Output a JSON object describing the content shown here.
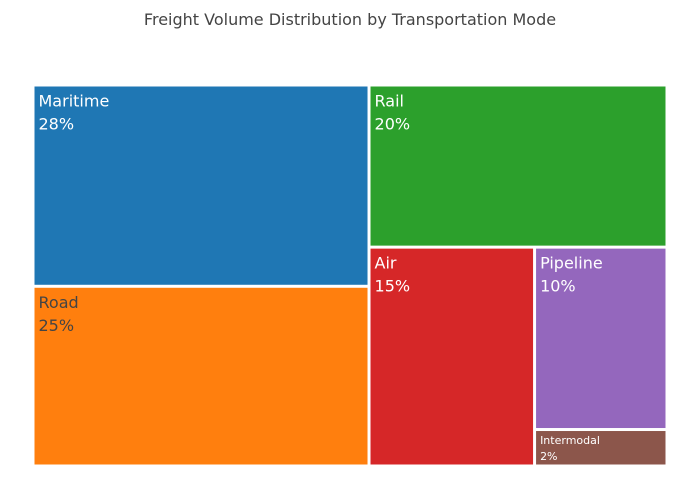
{
  "chart_data": {
    "type": "treemap",
    "title": "Freight Volume Distribution by Transportation Mode",
    "items": [
      {
        "label": "Maritime",
        "value": 28,
        "display": "28%",
        "color": "#1f77b4",
        "text_color": "#ffffff"
      },
      {
        "label": "Road",
        "value": 25,
        "display": "25%",
        "color": "#ff7f0e",
        "text_color": "#444444"
      },
      {
        "label": "Rail",
        "value": 20,
        "display": "20%",
        "color": "#2ca02c",
        "text_color": "#ffffff"
      },
      {
        "label": "Air",
        "value": 15,
        "display": "15%",
        "color": "#d62728",
        "text_color": "#ffffff"
      },
      {
        "label": "Pipeline",
        "value": 10,
        "display": "10%",
        "color": "#9467bd",
        "text_color": "#ffffff"
      },
      {
        "label": "Intermodal",
        "value": 2,
        "display": "2%",
        "color": "#8c564b",
        "text_color": "#ffffff"
      }
    ]
  }
}
